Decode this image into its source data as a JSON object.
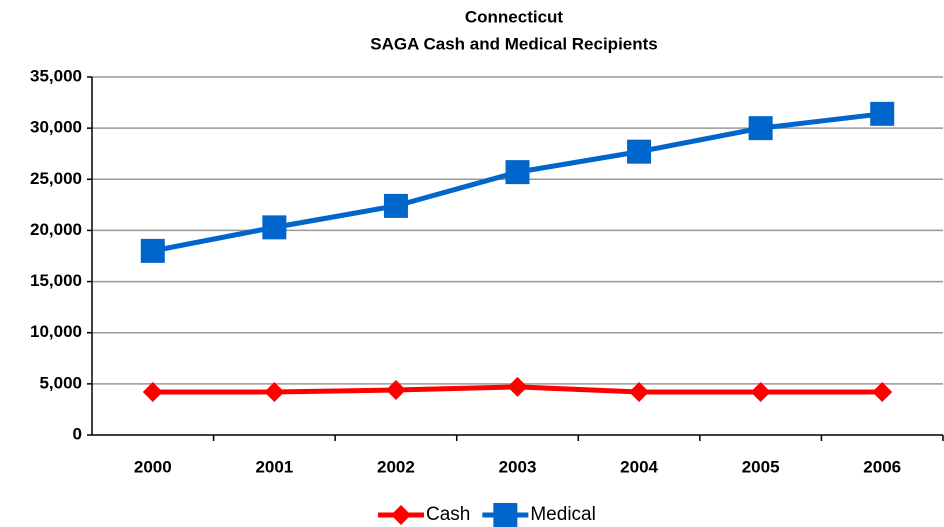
{
  "chart_data": {
    "type": "line",
    "title": "Connecticut",
    "subtitle": "SAGA Cash and Medical Recipients",
    "categories": [
      "2000",
      "2001",
      "2002",
      "2003",
      "2004",
      "2005",
      "2006"
    ],
    "series": [
      {
        "name": "Cash",
        "color": "#ff0000",
        "marker": "diamond",
        "values": [
          4200,
          4200,
          4400,
          4700,
          4200,
          4200,
          4200
        ]
      },
      {
        "name": "Medical",
        "color": "#0066cc",
        "marker": "square",
        "values": [
          18000,
          20300,
          22400,
          25700,
          27700,
          30000,
          31400
        ]
      }
    ],
    "ylim": [
      0,
      35000
    ],
    "yticks": [
      0,
      {
        "value": 5000,
        "label": "5,000"
      },
      {
        "value": 10000,
        "label": "10,000"
      },
      {
        "value": 15000,
        "label": "15,000"
      },
      {
        "value": 20000,
        "label": "20,000"
      },
      {
        "value": 25000,
        "label": "25,000"
      },
      {
        "value": 30000,
        "label": "30,000"
      },
      {
        "value": 35000,
        "label": "35,000"
      }
    ],
    "grid": true,
    "legend": "bottom"
  }
}
